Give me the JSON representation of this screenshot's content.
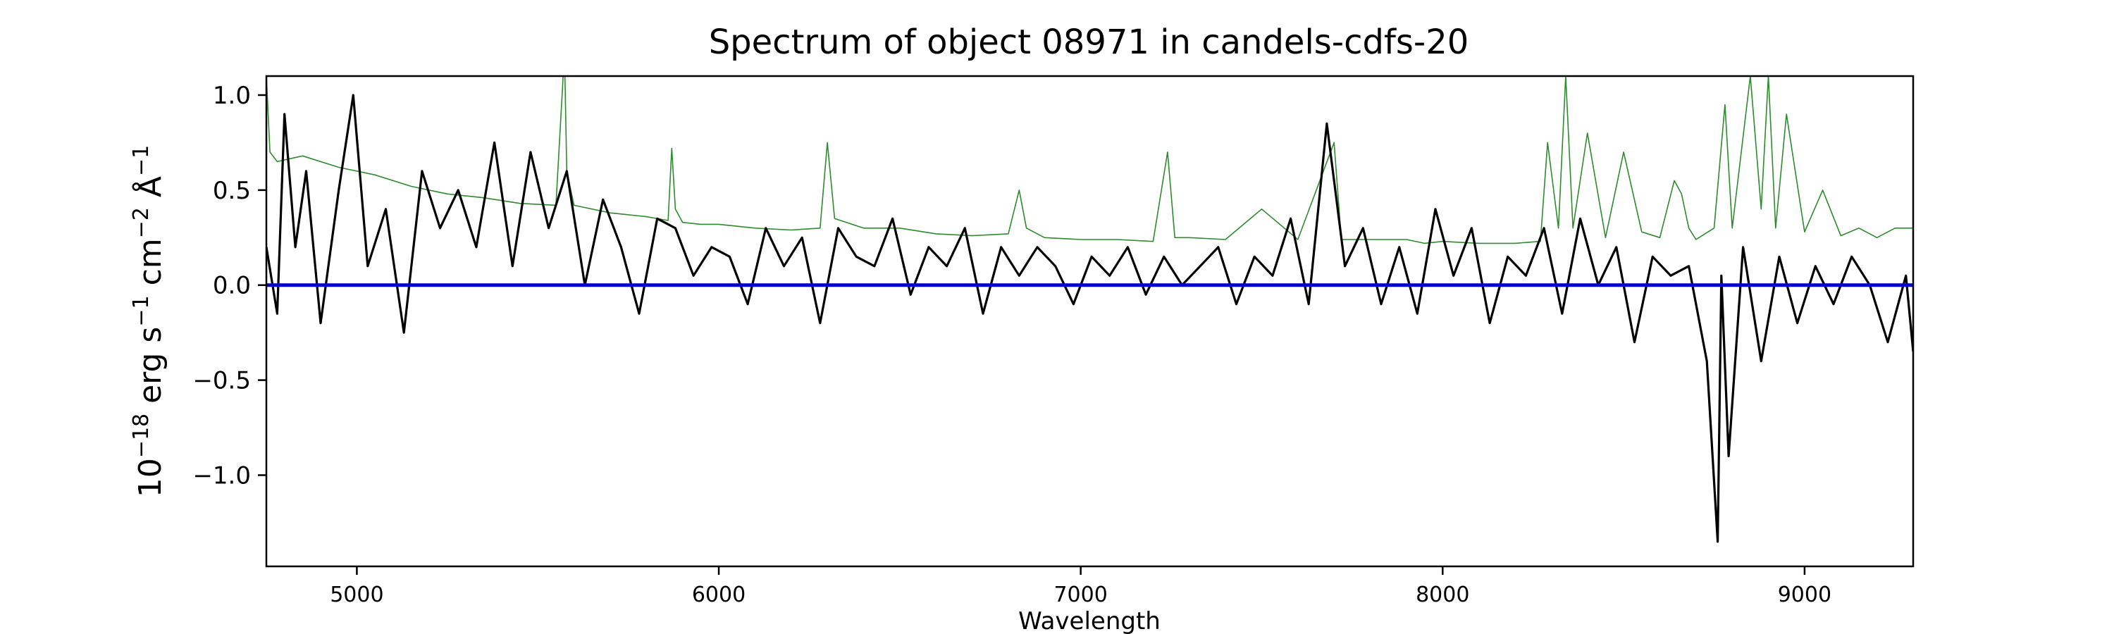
{
  "chart_data": {
    "type": "line",
    "title": "Spectrum of object 08971 in candels-cdfs-20",
    "xlabel": "Wavelength",
    "ylabel": {
      "base": "10",
      "exp1": "−18",
      "mid1": " erg s",
      "exp2": "−1",
      "mid2": " cm",
      "exp3": "−2",
      "mid3": " Å",
      "exp4": "−1"
    },
    "xlim": [
      4750,
      9300
    ],
    "ylim": [
      -1.48,
      1.1
    ],
    "xticks": [
      5000,
      6000,
      7000,
      8000,
      9000
    ],
    "xtick_labels": [
      "5000",
      "6000",
      "7000",
      "8000",
      "9000"
    ],
    "yticks": [
      -1.0,
      -0.5,
      0.0,
      0.5,
      1.0
    ],
    "ytick_labels": [
      "−1.0",
      "−0.5",
      "0.0",
      "0.5",
      "1.0"
    ],
    "grid": false,
    "series": [
      {
        "role": "flux",
        "color": "#000000",
        "x": [
          4750,
          4780,
          4800,
          4830,
          4860,
          4900,
          4950,
          4990,
          5030,
          5080,
          5130,
          5180,
          5230,
          5280,
          5330,
          5380,
          5430,
          5480,
          5530,
          5580,
          5630,
          5680,
          5730,
          5780,
          5830,
          5880,
          5930,
          5980,
          6030,
          6080,
          6130,
          6180,
          6230,
          6280,
          6330,
          6380,
          6430,
          6480,
          6530,
          6580,
          6630,
          6680,
          6730,
          6780,
          6830,
          6880,
          6930,
          6980,
          7030,
          7080,
          7130,
          7180,
          7230,
          7280,
          7330,
          7380,
          7430,
          7480,
          7530,
          7580,
          7630,
          7680,
          7730,
          7780,
          7830,
          7880,
          7930,
          7980,
          8030,
          8080,
          8130,
          8180,
          8230,
          8280,
          8330,
          8380,
          8430,
          8480,
          8530,
          8580,
          8630,
          8680,
          8730,
          8760,
          8770,
          8790,
          8830,
          8880,
          8930,
          8980,
          9030,
          9080,
          9130,
          9180,
          9230,
          9280,
          9300
        ],
        "y": [
          0.2,
          -0.15,
          0.9,
          0.2,
          0.6,
          -0.2,
          0.5,
          1.0,
          0.1,
          0.4,
          -0.25,
          0.6,
          0.3,
          0.5,
          0.2,
          0.75,
          0.1,
          0.7,
          0.3,
          0.6,
          0.0,
          0.45,
          0.2,
          -0.15,
          0.35,
          0.3,
          0.05,
          0.2,
          0.15,
          -0.1,
          0.3,
          0.1,
          0.25,
          -0.2,
          0.3,
          0.15,
          0.1,
          0.35,
          -0.05,
          0.2,
          0.1,
          0.3,
          -0.15,
          0.2,
          0.05,
          0.2,
          0.1,
          -0.1,
          0.15,
          0.05,
          0.2,
          -0.05,
          0.15,
          0.0,
          0.1,
          0.2,
          -0.1,
          0.15,
          0.05,
          0.35,
          -0.1,
          0.85,
          0.1,
          0.3,
          -0.1,
          0.2,
          -0.15,
          0.4,
          0.05,
          0.3,
          -0.2,
          0.15,
          0.05,
          0.3,
          -0.15,
          0.35,
          0.0,
          0.2,
          -0.3,
          0.15,
          0.05,
          0.1,
          -0.4,
          -1.35,
          0.05,
          -0.9,
          0.2,
          -0.4,
          0.15,
          -0.2,
          0.1,
          -0.1,
          0.15,
          0.0,
          -0.3,
          0.05,
          -0.35
        ]
      },
      {
        "role": "error",
        "color": "#2e8b2e",
        "x": [
          4750,
          4760,
          4780,
          4850,
          4950,
          5050,
          5150,
          5250,
          5350,
          5450,
          5550,
          5570,
          5575,
          5580,
          5600,
          5700,
          5800,
          5860,
          5870,
          5880,
          5900,
          5950,
          6000,
          6100,
          6200,
          6280,
          6300,
          6320,
          6400,
          6500,
          6600,
          6700,
          6800,
          6830,
          6850,
          6900,
          7000,
          7100,
          7200,
          7240,
          7260,
          7300,
          7400,
          7500,
          7600,
          7700,
          7720,
          7800,
          7900,
          7950,
          8000,
          8100,
          8200,
          8270,
          8290,
          8320,
          8340,
          8360,
          8400,
          8450,
          8500,
          8550,
          8600,
          8640,
          8660,
          8680,
          8700,
          8750,
          8780,
          8800,
          8850,
          8880,
          8900,
          8920,
          8950,
          9000,
          9050,
          9100,
          9150,
          9200,
          9250,
          9300
        ],
        "y": [
          1.1,
          0.7,
          0.65,
          0.68,
          0.62,
          0.58,
          0.52,
          0.48,
          0.46,
          0.43,
          0.42,
          1.1,
          1.1,
          0.6,
          0.42,
          0.38,
          0.36,
          0.34,
          0.72,
          0.4,
          0.33,
          0.32,
          0.32,
          0.3,
          0.29,
          0.3,
          0.75,
          0.35,
          0.3,
          0.3,
          0.27,
          0.26,
          0.27,
          0.5,
          0.3,
          0.25,
          0.24,
          0.24,
          0.23,
          0.7,
          0.25,
          0.25,
          0.24,
          0.4,
          0.24,
          0.75,
          0.24,
          0.24,
          0.24,
          0.22,
          0.23,
          0.22,
          0.22,
          0.23,
          0.75,
          0.3,
          1.1,
          0.3,
          0.8,
          0.25,
          0.7,
          0.28,
          0.25,
          0.55,
          0.48,
          0.3,
          0.24,
          0.3,
          0.95,
          0.3,
          1.1,
          0.4,
          1.1,
          0.3,
          0.9,
          0.28,
          0.5,
          0.26,
          0.3,
          0.25,
          0.3,
          0.3
        ]
      },
      {
        "role": "model",
        "color": "#0000cc",
        "x": [
          4750,
          9300
        ],
        "y": [
          0.0,
          0.0
        ]
      }
    ]
  }
}
